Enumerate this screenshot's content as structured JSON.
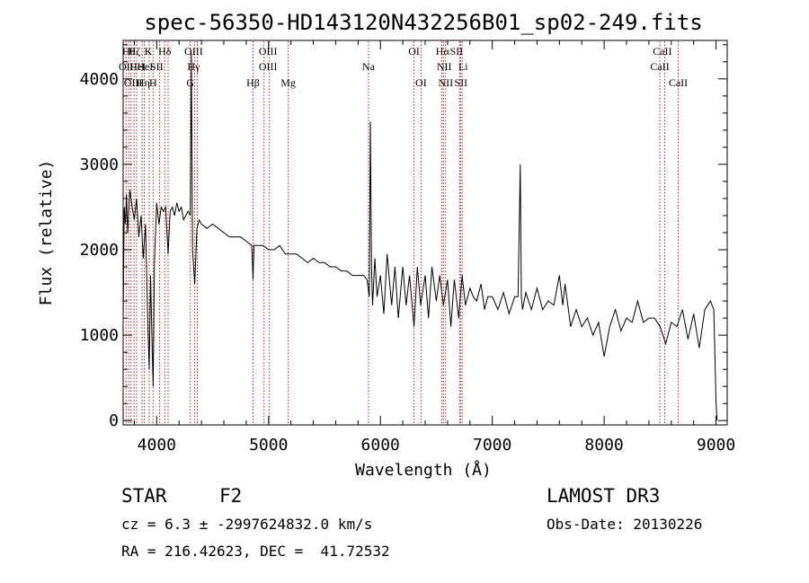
{
  "chart_data": {
    "type": "line",
    "title": "spec-56350-HD143120N432256B01_sp02-249.fits",
    "xlabel": "Wavelength (Å)",
    "ylabel": "Flux (relative)",
    "xlim": [
      3700,
      9100
    ],
    "ylim": [
      -50,
      4450
    ],
    "x_ticks": [
      4000,
      5000,
      6000,
      7000,
      8000,
      9000
    ],
    "y_ticks": [
      0,
      1000,
      2000,
      3000,
      4000
    ],
    "grid": false,
    "legend": "none",
    "line_color": "#000000",
    "marker_color": "#b22222",
    "series": [
      {
        "x": [
          3700,
          3710,
          3720,
          3730,
          3740,
          3760,
          3780,
          3800,
          3820,
          3840,
          3860,
          3880,
          3900,
          3920,
          3933,
          3945,
          3960,
          3968,
          3980,
          4000,
          4020,
          4040,
          4060,
          4080,
          4102,
          4120,
          4140,
          4160,
          4180,
          4200,
          4220,
          4240,
          4260,
          4280,
          4300,
          4310,
          4320,
          4340,
          4360,
          4380,
          4400,
          4450,
          4500,
          4550,
          4600,
          4650,
          4700,
          4750,
          4800,
          4850,
          4861,
          4870,
          4900,
          4950,
          5000,
          5050,
          5100,
          5150,
          5200,
          5250,
          5300,
          5350,
          5400,
          5450,
          5500,
          5550,
          5600,
          5650,
          5700,
          5750,
          5800,
          5850,
          5880,
          5900,
          5910,
          5920,
          5930,
          5950,
          5970,
          6000,
          6030,
          6060,
          6100,
          6130,
          6160,
          6200,
          6230,
          6260,
          6300,
          6330,
          6360,
          6400,
          6430,
          6460,
          6500,
          6530,
          6563,
          6600,
          6630,
          6660,
          6700,
          6730,
          6760,
          6800,
          6830,
          6860,
          6900,
          6930,
          6960,
          7000,
          7050,
          7100,
          7150,
          7200,
          7230,
          7250,
          7260,
          7270,
          7300,
          7350,
          7400,
          7450,
          7500,
          7550,
          7600,
          7630,
          7650,
          7700,
          7750,
          7800,
          7850,
          7900,
          7950,
          8000,
          8050,
          8100,
          8150,
          8200,
          8250,
          8300,
          8350,
          8400,
          8450,
          8500,
          8550,
          8600,
          8650,
          8700,
          8750,
          8800,
          8850,
          8900,
          8950,
          8980,
          9000,
          9010
        ],
        "y": [
          1200,
          2500,
          2300,
          2650,
          2200,
          2700,
          2500,
          2350,
          2600,
          2150,
          2400,
          1900,
          2300,
          1150,
          600,
          1700,
          800,
          400,
          1850,
          2550,
          2300,
          2500,
          2450,
          2500,
          1950,
          2450,
          2500,
          2400,
          2550,
          2450,
          2500,
          2350,
          2400,
          2450,
          2400,
          4300,
          2000,
          1600,
          2250,
          2350,
          2300,
          2250,
          2300,
          2250,
          2200,
          2150,
          2150,
          2150,
          2100,
          2050,
          1650,
          2050,
          2050,
          2050,
          2000,
          2000,
          2050,
          1950,
          1950,
          1950,
          1900,
          1850,
          1900,
          1850,
          1850,
          1800,
          1800,
          1750,
          1750,
          1700,
          1700,
          1700,
          1650,
          1450,
          3500,
          1800,
          1350,
          1900,
          1450,
          1700,
          1250,
          1950,
          1350,
          1800,
          1200,
          1800,
          1350,
          1700,
          1100,
          1800,
          1350,
          1700,
          1200,
          1800,
          1400,
          1700,
          1350,
          1650,
          1100,
          1650,
          1200,
          1700,
          1350,
          1550,
          1450,
          1400,
          1600,
          1300,
          1450,
          1450,
          1300,
          1500,
          1250,
          1450,
          1450,
          3000,
          1450,
          1300,
          1500,
          1300,
          1550,
          1300,
          1400,
          1350,
          1700,
          1350,
          1600,
          1100,
          1300,
          1100,
          1200,
          1000,
          1150,
          750,
          1100,
          1300,
          1050,
          1200,
          1150,
          1400,
          1150,
          1200,
          1200,
          1100,
          900,
          1150,
          1100,
          1300,
          950,
          1250,
          850,
          1300,
          1400,
          1300,
          200,
          0
        ]
      }
    ],
    "lines": [
      {
        "x": 3727,
        "names": [
          "OII"
        ]
      },
      {
        "x": 3750,
        "names": [
          "Hθ"
        ]
      },
      {
        "x": 3770,
        "names": [
          "Hη"
        ]
      },
      {
        "x": 3798,
        "names": [
          "Hζ"
        ]
      },
      {
        "x": 3820,
        "names": [
          "HeI"
        ]
      },
      {
        "x": 3869,
        "names": [
          "OIII"
        ]
      },
      {
        "x": 3889,
        "names": [
          "Hη"
        ]
      },
      {
        "x": 3933,
        "names": [
          "K"
        ]
      },
      {
        "x": 3968,
        "names": [
          "H"
        ]
      },
      {
        "x": 4026,
        "names": [
          "HeI"
        ]
      },
      {
        "x": 4072,
        "names": [
          "SII"
        ]
      },
      {
        "x": 4102,
        "names": [
          "Hδ"
        ]
      },
      {
        "x": 4300,
        "names": [
          "G"
        ]
      },
      {
        "x": 4340,
        "names": [
          "Hγ"
        ]
      },
      {
        "x": 4363,
        "names": [
          "OIII"
        ]
      },
      {
        "x": 4861,
        "names": [
          "Hβ"
        ]
      },
      {
        "x": 4959,
        "names": [
          "OIII"
        ]
      },
      {
        "x": 5007,
        "names": [
          "OIII"
        ]
      },
      {
        "x": 5175,
        "names": [
          "Mg"
        ]
      },
      {
        "x": 5893,
        "names": [
          "Na"
        ]
      },
      {
        "x": 6300,
        "names": [
          "OI"
        ]
      },
      {
        "x": 6363,
        "names": [
          "OI"
        ]
      },
      {
        "x": 6548,
        "names": [
          "NII"
        ]
      },
      {
        "x": 6563,
        "names": [
          "Hα"
        ]
      },
      {
        "x": 6583,
        "names": [
          "NII"
        ]
      },
      {
        "x": 6708,
        "names": [
          "Li"
        ]
      },
      {
        "x": 6716,
        "names": [
          "SII"
        ]
      },
      {
        "x": 6731,
        "names": [
          "SII"
        ]
      },
      {
        "x": 8498,
        "names": [
          "CaII"
        ]
      },
      {
        "x": 8542,
        "names": [
          "CaII"
        ]
      },
      {
        "x": 8662,
        "names": [
          "CaII"
        ]
      }
    ],
    "line_labels": [
      {
        "text": "Hθ",
        "row": 0,
        "at": 3750
      },
      {
        "text": "OII",
        "row": 1,
        "at": 3727
      },
      {
        "text": "OIII",
        "row": 2,
        "at": 3790
      },
      {
        "text": "Hζ",
        "row": 0,
        "at": 3800
      },
      {
        "text": "HeI",
        "row": 1,
        "at": 3830
      },
      {
        "text": "Hη",
        "row": 2,
        "at": 3880
      },
      {
        "text": "K",
        "row": 0,
        "at": 3925
      },
      {
        "text": "HeI",
        "row": 1,
        "at": 3895
      },
      {
        "text": "H",
        "row": 2,
        "at": 3968
      },
      {
        "text": "SII",
        "row": 1,
        "at": 4000
      },
      {
        "text": "Hδ",
        "row": 0,
        "at": 4072
      },
      {
        "text": "OIII",
        "row": 0,
        "at": 4330
      },
      {
        "text": "Hγ",
        "row": 1,
        "at": 4330
      },
      {
        "text": "G",
        "row": 2,
        "at": 4300
      },
      {
        "text": "Hβ",
        "row": 2,
        "at": 4861
      },
      {
        "text": "OIII",
        "row": 0,
        "at": 4995
      },
      {
        "text": "OIII",
        "row": 1,
        "at": 4995
      },
      {
        "text": "Mg",
        "row": 2,
        "at": 5175
      },
      {
        "text": "Na",
        "row": 1,
        "at": 5893
      },
      {
        "text": "OI",
        "row": 0,
        "at": 6300
      },
      {
        "text": "OI",
        "row": 2,
        "at": 6363
      },
      {
        "text": "Hα",
        "row": 0,
        "at": 6555
      },
      {
        "text": "SII",
        "row": 0,
        "at": 6680
      },
      {
        "text": "NII",
        "row": 1,
        "at": 6570
      },
      {
        "text": "Li",
        "row": 1,
        "at": 6740
      },
      {
        "text": "NII",
        "row": 2,
        "at": 6583
      },
      {
        "text": "SII",
        "row": 2,
        "at": 6720
      },
      {
        "text": "CaII",
        "row": 0,
        "at": 8520
      },
      {
        "text": "CaII",
        "row": 1,
        "at": 8498
      },
      {
        "text": "CaII",
        "row": 2,
        "at": 8662
      }
    ]
  },
  "info": {
    "object_class": "STAR",
    "subclass": "F2",
    "survey": "LAMOST DR3",
    "cz": "cz = 6.3 ± -2997624832.0 km/s",
    "obs_date": "Obs-Date: 20130226",
    "coords": "RA = 216.42623, DEC =  41.72532"
  }
}
